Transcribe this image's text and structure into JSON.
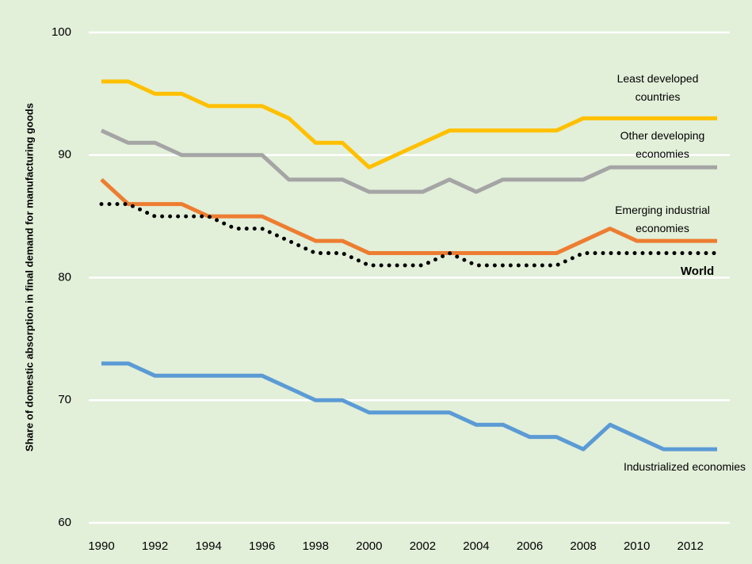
{
  "chart_data": {
    "type": "line",
    "y_label": "Share of domestic absorption in final demand for manufacturing goods",
    "x": [
      1990,
      1991,
      1992,
      1993,
      1994,
      1995,
      1996,
      1997,
      1998,
      1999,
      2000,
      2001,
      2002,
      2003,
      2004,
      2005,
      2006,
      2007,
      2008,
      2009,
      2010,
      2011,
      2012,
      2013
    ],
    "xlim": [
      1990,
      2013
    ],
    "xticks": [
      1990,
      1992,
      1994,
      1996,
      1998,
      2000,
      2002,
      2004,
      2006,
      2008,
      2010,
      2012
    ],
    "ylim": [
      60,
      100
    ],
    "yticks": [
      60,
      70,
      80,
      90,
      100
    ],
    "grid": true,
    "series": [
      {
        "name": "Least developed countries",
        "color": "#ffc000",
        "values": [
          96,
          96,
          95,
          95,
          94,
          94,
          94,
          93,
          91,
          91,
          89,
          90,
          91,
          92,
          92,
          92,
          92,
          92,
          93,
          93,
          93,
          93,
          93,
          93
        ]
      },
      {
        "name": "Other developing economies",
        "color": "#a5a5a5",
        "values": [
          92,
          91,
          91,
          90,
          90,
          90,
          90,
          88,
          88,
          88,
          87,
          87,
          87,
          88,
          87,
          88,
          88,
          88,
          88,
          89,
          89,
          89,
          89,
          89
        ]
      },
      {
        "name": "Emerging industrial economies",
        "color": "#ed7d31",
        "values": [
          88,
          86,
          86,
          86,
          85,
          85,
          85,
          84,
          83,
          83,
          82,
          82,
          82,
          82,
          82,
          82,
          82,
          82,
          83,
          84,
          83,
          83,
          83,
          83
        ]
      },
      {
        "name": "World",
        "color": "#000000",
        "style": "dotted",
        "values": [
          86,
          86,
          85,
          85,
          85,
          84,
          84,
          83,
          82,
          82,
          81,
          81,
          81,
          82,
          81,
          81,
          81,
          81,
          82,
          82,
          82,
          82,
          82,
          82
        ]
      },
      {
        "name": "Industrialized economies",
        "color": "#5b9bd5",
        "values": [
          73,
          73,
          72,
          72,
          72,
          72,
          72,
          71,
          70,
          70,
          69,
          69,
          69,
          69,
          68,
          68,
          67,
          67,
          66,
          68,
          67,
          66,
          66,
          66
        ]
      }
    ]
  }
}
